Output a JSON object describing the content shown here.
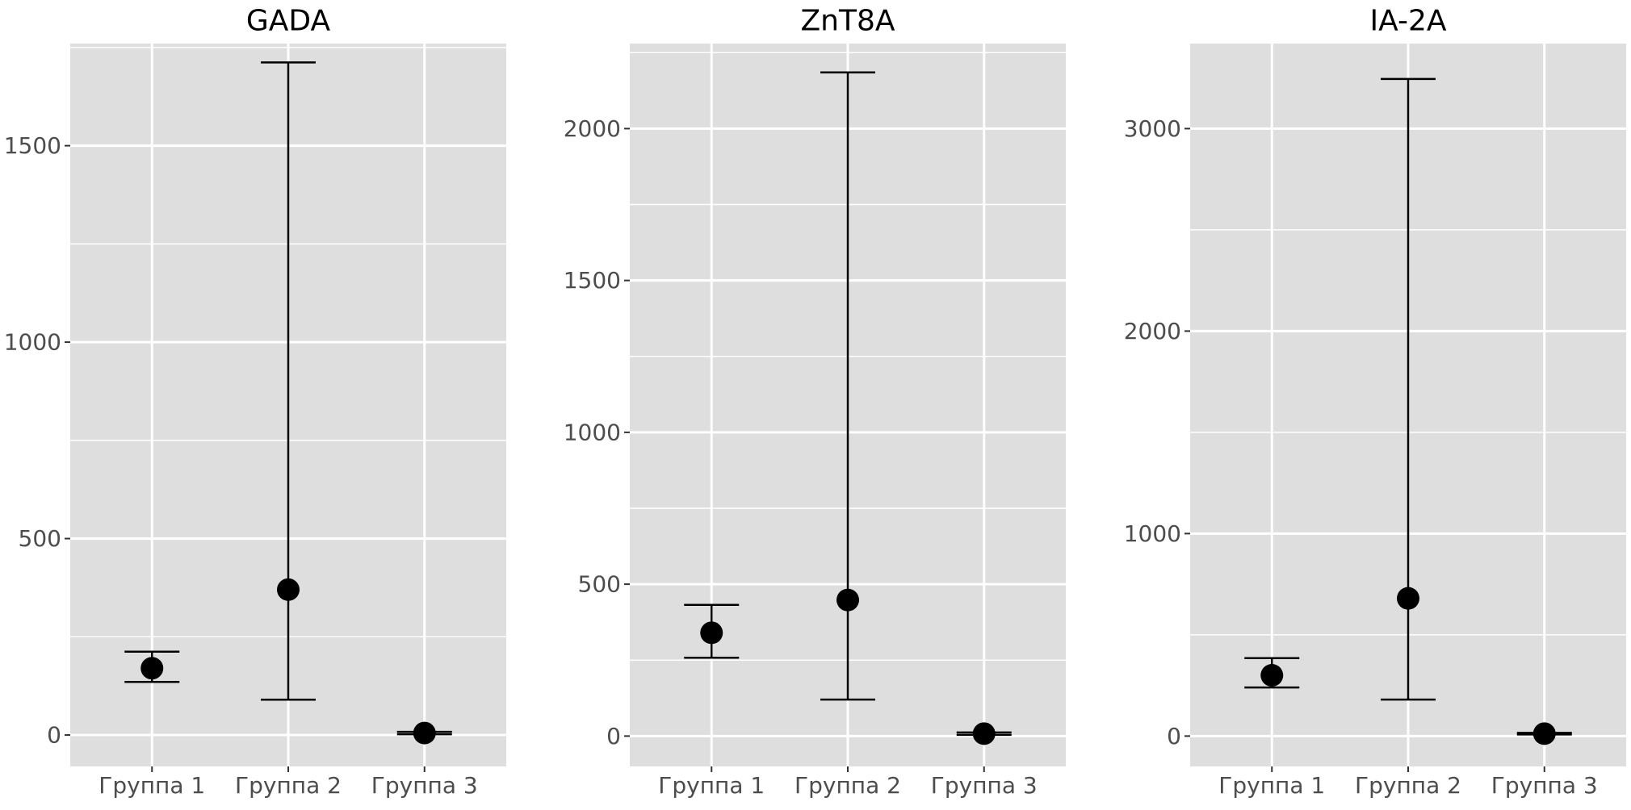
{
  "chart_data": [
    {
      "type": "scatter",
      "title": "GADA",
      "categories": [
        "Группа 1",
        "Группа 2",
        "Группа 3"
      ],
      "yticks": [
        0,
        500,
        1000,
        1500
      ],
      "ylim": [
        -80,
        1760
      ],
      "grid": true,
      "points": [
        {
          "category": "Группа 1",
          "y": 170,
          "lower": 135,
          "upper": 212
        },
        {
          "category": "Группа 2",
          "y": 370,
          "lower": 90,
          "upper": 1712
        },
        {
          "category": "Группа 3",
          "y": 5,
          "lower": 2,
          "upper": 8
        }
      ]
    },
    {
      "type": "scatter",
      "title": "ZnT8A",
      "categories": [
        "Группа 1",
        "Группа 2",
        "Группа 3"
      ],
      "yticks": [
        0,
        500,
        1000,
        1500,
        2000
      ],
      "ylim": [
        -100,
        2280
      ],
      "grid": true,
      "points": [
        {
          "category": "Группа 1",
          "y": 340,
          "lower": 258,
          "upper": 432
        },
        {
          "category": "Группа 2",
          "y": 448,
          "lower": 120,
          "upper": 2185
        },
        {
          "category": "Группа 3",
          "y": 8,
          "lower": 4,
          "upper": 12
        }
      ]
    },
    {
      "type": "scatter",
      "title": "IA-2A",
      "categories": [
        "Группа 1",
        "Группа 2",
        "Группа 3"
      ],
      "yticks": [
        0,
        1000,
        2000,
        3000
      ],
      "ylim": [
        -150,
        3420
      ],
      "grid": true,
      "points": [
        {
          "category": "Группа 1",
          "y": 300,
          "lower": 240,
          "upper": 385
        },
        {
          "category": "Группа 2",
          "y": 680,
          "lower": 180,
          "upper": 3245
        },
        {
          "category": "Группа 3",
          "y": 12,
          "lower": 8,
          "upper": 16
        }
      ]
    }
  ]
}
